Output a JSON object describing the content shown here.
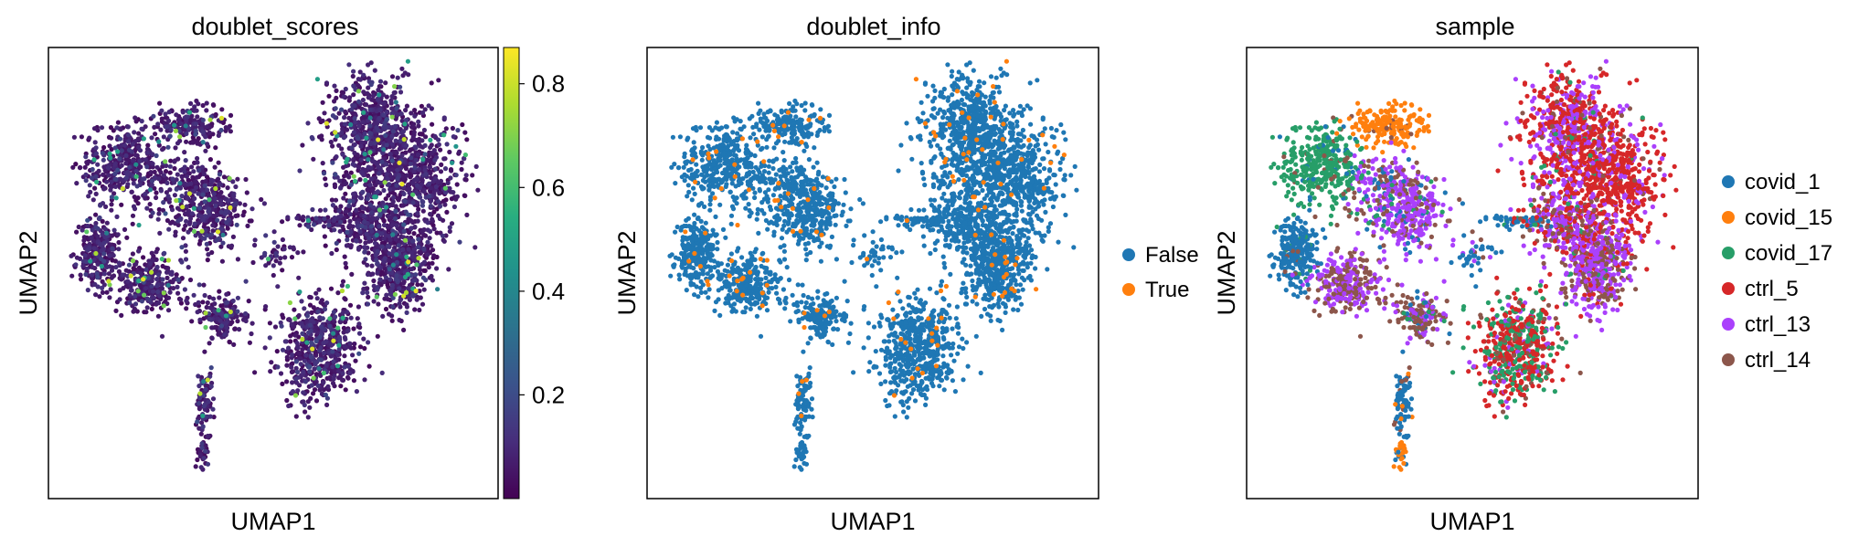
{
  "chart_data": [
    {
      "type": "scatter",
      "title": "doublet_scores",
      "xlabel": "UMAP1",
      "ylabel": "UMAP2",
      "color_by": "continuous",
      "colormap": "viridis",
      "colorbar": {
        "range": [
          0.0,
          0.87
        ],
        "ticks": [
          0.2,
          0.4,
          0.6,
          0.8
        ],
        "tick_labels": [
          "0.2",
          "0.4",
          "0.6",
          "0.8"
        ]
      }
    },
    {
      "type": "scatter",
      "title": "doublet_info",
      "xlabel": "UMAP1",
      "ylabel": "UMAP2",
      "color_by": "categorical",
      "legend": {
        "placement": "right",
        "entries": [
          {
            "label": "False",
            "color": "#1f77b4"
          },
          {
            "label": "True",
            "color": "#ff7f0e"
          }
        ]
      }
    },
    {
      "type": "scatter",
      "title": "sample",
      "xlabel": "UMAP1",
      "ylabel": "UMAP2",
      "color_by": "categorical",
      "legend": {
        "placement": "right",
        "entries": [
          {
            "label": "covid_1",
            "color": "#1f77b4"
          },
          {
            "label": "covid_15",
            "color": "#ff7f0e"
          },
          {
            "label": "covid_17",
            "color": "#279e68"
          },
          {
            "label": "ctrl_5",
            "color": "#d62728"
          },
          {
            "label": "ctrl_13",
            "color": "#aa40fc"
          },
          {
            "label": "ctrl_14",
            "color": "#8c564b"
          }
        ]
      }
    }
  ]
}
